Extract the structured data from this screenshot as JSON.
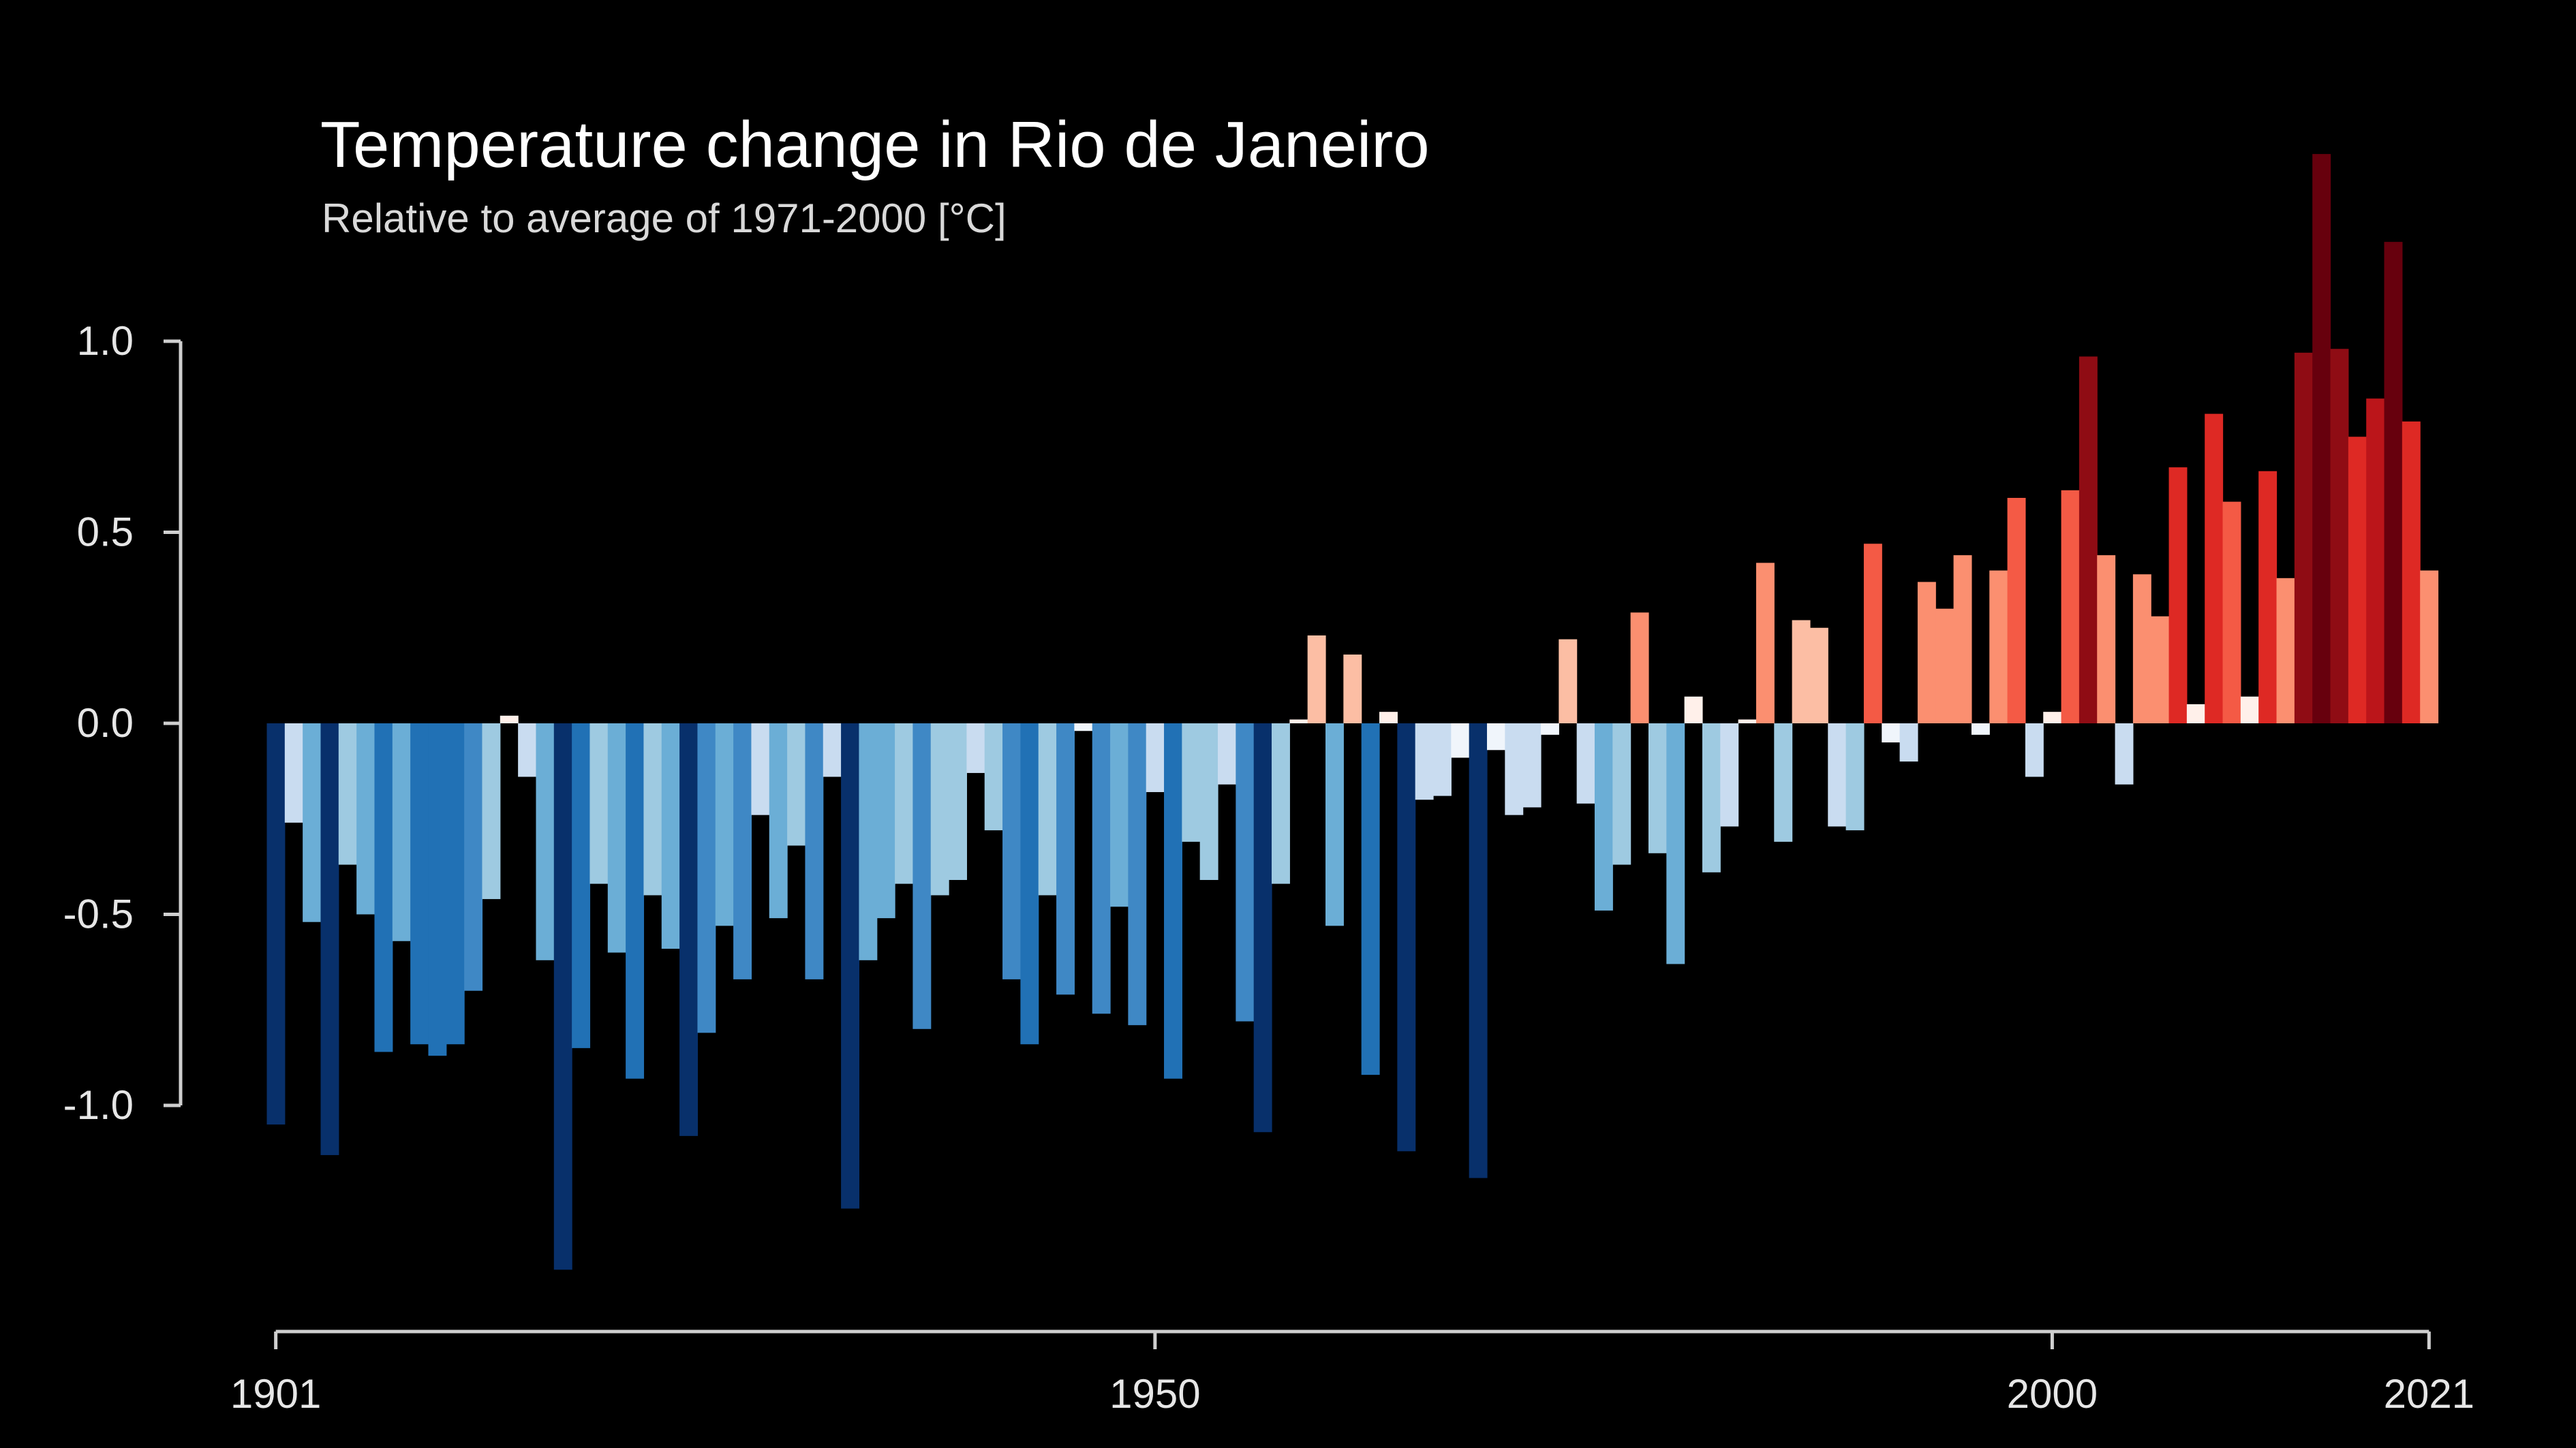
{
  "chart_data": {
    "type": "bar",
    "title": "Temperature change in Rio de Janeiro",
    "subtitle": "Relative to average of 1971-2000  [°C]",
    "xlabel": "",
    "ylabel": "",
    "x_start": 1901,
    "x_end": 2021,
    "ylim": [
      -1.5,
      1.5
    ],
    "y_ticks": [
      {
        "value": 1.0,
        "label": "1.0"
      },
      {
        "value": 0.5,
        "label": "0.5"
      },
      {
        "value": 0.0,
        "label": "0.0"
      },
      {
        "value": -0.5,
        "label": "-0.5"
      },
      {
        "value": -1.0,
        "label": "-1.0"
      }
    ],
    "x_ticks": [
      {
        "value": 1901,
        "label": "1901"
      },
      {
        "value": 1950,
        "label": "1950"
      },
      {
        "value": 2000,
        "label": "2000"
      },
      {
        "value": 2021,
        "label": "2021"
      }
    ],
    "grid": false,
    "legend": "none",
    "values": [
      -1.05,
      -0.26,
      -0.52,
      -1.13,
      -0.37,
      -0.5,
      -0.86,
      -0.57,
      -0.84,
      -0.87,
      -0.84,
      -0.7,
      -0.46,
      0.02,
      -0.14,
      -0.62,
      -1.43,
      -0.85,
      -0.42,
      -0.6,
      -0.93,
      -0.45,
      -0.59,
      -1.08,
      -0.81,
      -0.53,
      -0.67,
      -0.24,
      -0.51,
      -0.32,
      -0.67,
      -0.14,
      -1.27,
      -0.62,
      -0.51,
      -0.42,
      -0.8,
      -0.45,
      -0.41,
      -0.13,
      -0.28,
      -0.67,
      -0.84,
      -0.45,
      -0.71,
      -0.02,
      -0.76,
      -0.48,
      -0.79,
      -0.18,
      -0.93,
      -0.31,
      -0.41,
      -0.16,
      -0.78,
      -1.07,
      -0.42,
      0.01,
      0.23,
      -0.53,
      0.18,
      -0.92,
      0.03,
      -1.12,
      -0.2,
      -0.19,
      -0.09,
      -1.19,
      -0.07,
      -0.24,
      -0.22,
      -0.03,
      0.22,
      -0.21,
      -0.49,
      -0.37,
      0.29,
      -0.34,
      -0.63,
      0.07,
      -0.39,
      -0.27,
      0.01,
      0.42,
      -0.31,
      0.27,
      0.25,
      -0.27,
      -0.28,
      0.47,
      -0.05,
      -0.1,
      0.37,
      0.3,
      0.44,
      -0.03,
      0.4,
      0.59,
      -0.14,
      0.03,
      0.61,
      0.96,
      0.44,
      -0.16,
      0.39,
      0.28,
      0.67,
      0.05,
      0.81,
      0.58,
      0.07,
      0.66,
      0.38,
      0.97,
      1.49,
      0.98,
      0.75,
      0.85,
      1.26,
      0.79,
      0.4
    ],
    "color_scale": {
      "negative": [
        "#f0f5fb",
        "#c9dcf0",
        "#9ecae1",
        "#6baed6",
        "#3f88c5",
        "#2171b5",
        "#0a55a3",
        "#08306b"
      ],
      "positive": [
        "#fff0ea",
        "#fcbea4",
        "#fb8f70",
        "#f45a45",
        "#de2924",
        "#bb151a",
        "#8f0c14",
        "#67000d"
      ]
    }
  }
}
